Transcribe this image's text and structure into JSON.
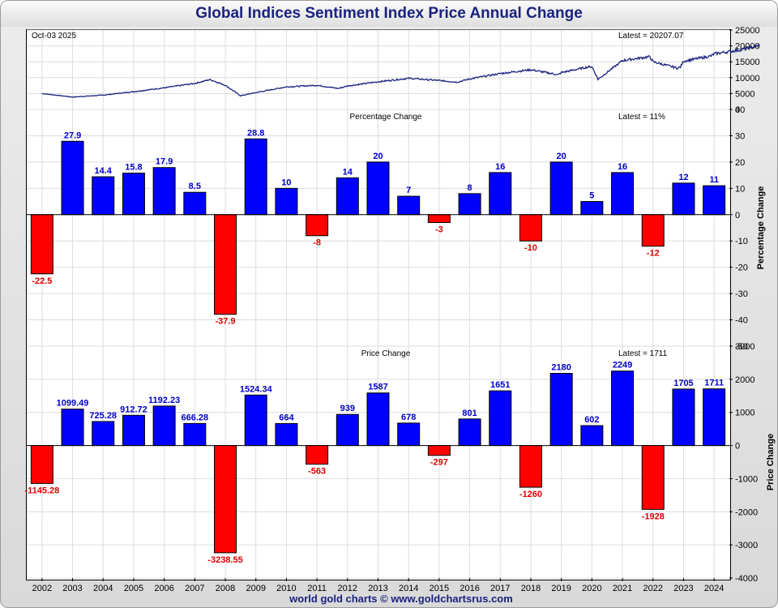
{
  "title": "Global Indices Sentiment Index Price Annual Change",
  "footer": "world gold charts © www.goldchartsrus.com",
  "colors": {
    "title": "#1a237e",
    "positive": "#0000ff",
    "negative": "#ff0000",
    "price_line": "#1a237e",
    "grid": "#dcdcdc",
    "positive_label": "#0000cc",
    "negative_label": "#dd0000"
  },
  "chart_data": [
    {
      "type": "line",
      "name": "price-panel",
      "date_label": "Oct-03  2025",
      "latest_label": "Latest = 20207.07",
      "ylim": [
        0,
        25000
      ],
      "yticks": [
        0,
        5000,
        10000,
        15000,
        20000,
        25000
      ],
      "x": [
        2002.0,
        2003.0,
        2004.0,
        2005.0,
        2006.0,
        2007.0,
        2007.5,
        2008.0,
        2008.5,
        2009.0,
        2010.0,
        2011.0,
        2011.7,
        2012.0,
        2013.0,
        2014.0,
        2015.0,
        2015.6,
        2016.0,
        2017.0,
        2018.0,
        2018.9,
        2019.0,
        2019.9,
        2020.0,
        2020.2,
        2020.9,
        2021.0,
        2021.9,
        2022.0,
        2022.8,
        2022.9,
        2023.0,
        2023.9,
        2024.0,
        2024.9,
        2025.5
      ],
      "y": [
        5000,
        3900,
        4500,
        5600,
        6800,
        8200,
        9400,
        7600,
        4300,
        5300,
        7100,
        7600,
        6600,
        7400,
        8700,
        9800,
        9100,
        8600,
        9600,
        11300,
        12500,
        10900,
        11600,
        13400,
        13500,
        9500,
        14600,
        15400,
        16600,
        15000,
        13000,
        13400,
        15200,
        16800,
        17500,
        18800,
        20207.07
      ]
    },
    {
      "type": "bar",
      "name": "percentage-change",
      "title": "Percentage Change",
      "latest_label": "Latest = 11%",
      "ylabel": "Percentage Change",
      "ylim": [
        -50,
        40
      ],
      "yticks": [
        -50,
        -40,
        -30,
        -20,
        -10,
        0,
        10,
        20,
        30,
        40
      ],
      "categories": [
        "2002",
        "2003",
        "2004",
        "2005",
        "2006",
        "2007",
        "2008",
        "2009",
        "2010",
        "2011",
        "2012",
        "2013",
        "2014",
        "2015",
        "2016",
        "2017",
        "2018",
        "2019",
        "2020",
        "2021",
        "2022",
        "2023",
        "2024"
      ],
      "values": [
        -22.5,
        27.9,
        14.4,
        15.8,
        17.9,
        8.5,
        -37.9,
        28.8,
        10,
        -8,
        14,
        20,
        7,
        -3,
        8,
        16,
        -10,
        20,
        5,
        16,
        -12,
        12,
        11
      ],
      "labels": [
        "-22.5",
        "27.9",
        "14.4",
        "15.8",
        "17.9",
        "8.5",
        "-37.9",
        "28.8",
        "10",
        "-8",
        "14",
        "20",
        "7",
        "-3",
        "8",
        "16",
        "-10",
        "20",
        "5",
        "16",
        "-12",
        "12",
        "11"
      ]
    },
    {
      "type": "bar",
      "name": "price-change",
      "title": "Price Change",
      "latest_label": "Latest = 1711",
      "ylabel": "Price Change",
      "ylim": [
        -4000,
        3000
      ],
      "yticks": [
        -4000,
        -3000,
        -2000,
        -1000,
        0,
        1000,
        2000,
        3000
      ],
      "categories": [
        "2002",
        "2003",
        "2004",
        "2005",
        "2006",
        "2007",
        "2008",
        "2009",
        "2010",
        "2011",
        "2012",
        "2013",
        "2014",
        "2015",
        "2016",
        "2017",
        "2018",
        "2019",
        "2020",
        "2021",
        "2022",
        "2023",
        "2024"
      ],
      "values": [
        -1145.28,
        1099.49,
        725.28,
        912.72,
        1192.23,
        666.28,
        -3238.55,
        1524.34,
        664,
        -563,
        939,
        1587,
        678,
        -297,
        801,
        1651,
        -1260,
        2180,
        602,
        2249,
        -1928,
        1705,
        1711
      ],
      "labels": [
        "-1145.28",
        "1099.49",
        "725.28",
        "912.72",
        "1192.23",
        "666.28",
        "-3238.55",
        "1524.34",
        "664",
        "-563",
        "939",
        "1587",
        "678",
        "-297",
        "801",
        "1651",
        "-1260",
        "2180",
        "602",
        "2249",
        "-1928",
        "1705",
        "1711"
      ]
    }
  ]
}
